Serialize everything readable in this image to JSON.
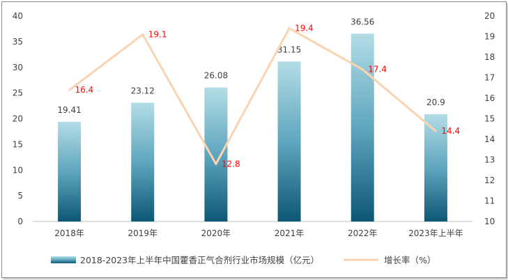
{
  "chart_data": {
    "type": "bar",
    "categories": [
      "2018年",
      "2019年",
      "2020年",
      "2021年",
      "2022年",
      "2023年上半年"
    ],
    "series": [
      {
        "name": "2018-2023年上半年中国藿香正气合剂行业市场规模（亿元）",
        "type": "bar",
        "axis": "left",
        "values": [
          19.41,
          23.12,
          26.08,
          31.15,
          36.56,
          20.9
        ],
        "labels": [
          "19.41",
          "23.12",
          "26.08",
          "31.15",
          "36.56",
          "20.9"
        ]
      },
      {
        "name": "增长率（%）",
        "type": "line",
        "axis": "right",
        "values": [
          16.4,
          19.1,
          12.8,
          19.4,
          17.4,
          14.4
        ],
        "labels": [
          "16.4",
          "19.1",
          "12.8",
          "19.4",
          "17.4",
          "14.4"
        ]
      }
    ],
    "y_left": {
      "range": [
        0,
        40
      ],
      "ticks": [
        "0",
        "5",
        "10",
        "15",
        "20",
        "25",
        "30",
        "35",
        "40"
      ]
    },
    "y_right": {
      "range": [
        10,
        20
      ],
      "ticks": [
        "10",
        "11",
        "12",
        "13",
        "14",
        "15",
        "16",
        "17",
        "18",
        "19",
        "20"
      ]
    },
    "grid": false,
    "legend_position": "bottom",
    "colors": {
      "bar_top": "#b3dde6",
      "bar_mid": "#5fa6be",
      "bar_bottom": "#0c5775",
      "line": "#fbd3b0",
      "line_label": "#ff0000",
      "axis_text": "#404040"
    }
  }
}
